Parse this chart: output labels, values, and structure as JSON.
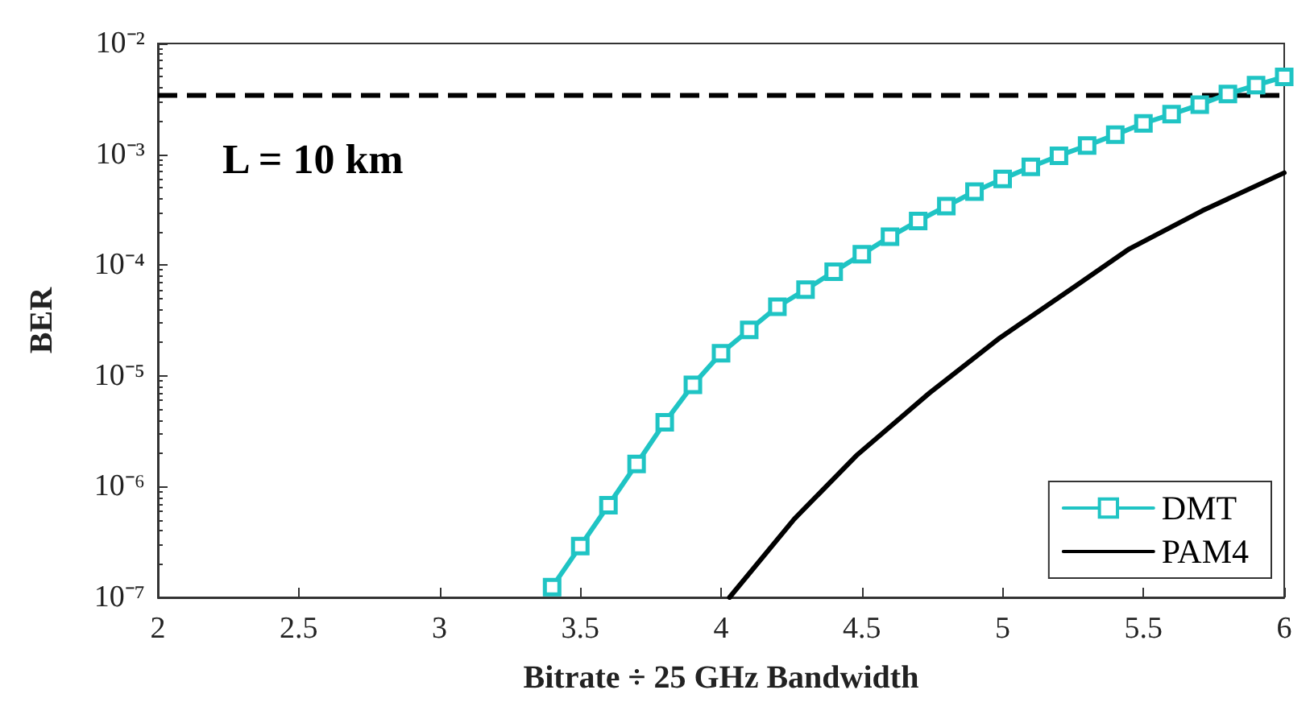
{
  "chart_data": {
    "type": "line",
    "xlabel": "Bitrate ÷ 25 GHz Bandwidth",
    "ylabel": "BER",
    "log": "y",
    "xlim": [
      2,
      6
    ],
    "xticks": [
      2,
      2.5,
      3,
      3.5,
      4,
      4.5,
      5,
      5.5,
      6
    ],
    "ylim": [
      1e-07,
      0.01
    ],
    "yticks": [
      {
        "value": 1e-07,
        "label": "10⁻⁷"
      },
      {
        "value": 1e-06,
        "label": "10⁻⁶"
      },
      {
        "value": 1e-05,
        "label": "10⁻⁵"
      },
      {
        "value": 0.0001,
        "label": "10⁻⁴"
      },
      {
        "value": 0.001,
        "label": "10⁻³"
      },
      {
        "value": 0.01,
        "label": "10⁻²"
      }
    ],
    "grid": false,
    "legend": "bottom right",
    "annotations": [
      "L = 10 km"
    ],
    "ref_lines": [
      {
        "axis": "y",
        "value": 0.0034,
        "color": "#000000",
        "line_style": "dashed"
      }
    ],
    "series": [
      {
        "name": "DMT",
        "color": "#1fc4c4",
        "marker": "square",
        "x": [
          3.4,
          3.5,
          3.6,
          3.7,
          3.8,
          3.9,
          4.0,
          4.1,
          4.2,
          4.3,
          4.4,
          4.5,
          4.6,
          4.7,
          4.8,
          4.9,
          5.0,
          5.1,
          5.2,
          5.3,
          5.4,
          5.5,
          5.6,
          5.7,
          5.8,
          5.9,
          6.0
        ],
        "values": [
          1.24e-07,
          2.9e-07,
          6.8e-07,
          1.6e-06,
          3.8e-06,
          8.3e-06,
          1.6e-05,
          2.6e-05,
          4.2e-05,
          6e-05,
          8.7e-05,
          0.000125,
          0.00018,
          0.00025,
          0.00034,
          0.00046,
          0.0006,
          0.00077,
          0.00097,
          0.0012,
          0.0015,
          0.0019,
          0.0023,
          0.0028,
          0.0035,
          0.0042,
          0.005
        ]
      },
      {
        "name": "PAM4",
        "color": "#000000",
        "marker": "none",
        "x": [
          4.03,
          4.26,
          4.48,
          4.74,
          4.99,
          5.26,
          5.45,
          5.71,
          6.0
        ],
        "values": [
          1e-07,
          5.1e-07,
          1.9e-06,
          7e-06,
          2.2e-05,
          6.5e-05,
          0.00014,
          0.00031,
          0.00068
        ]
      }
    ]
  }
}
